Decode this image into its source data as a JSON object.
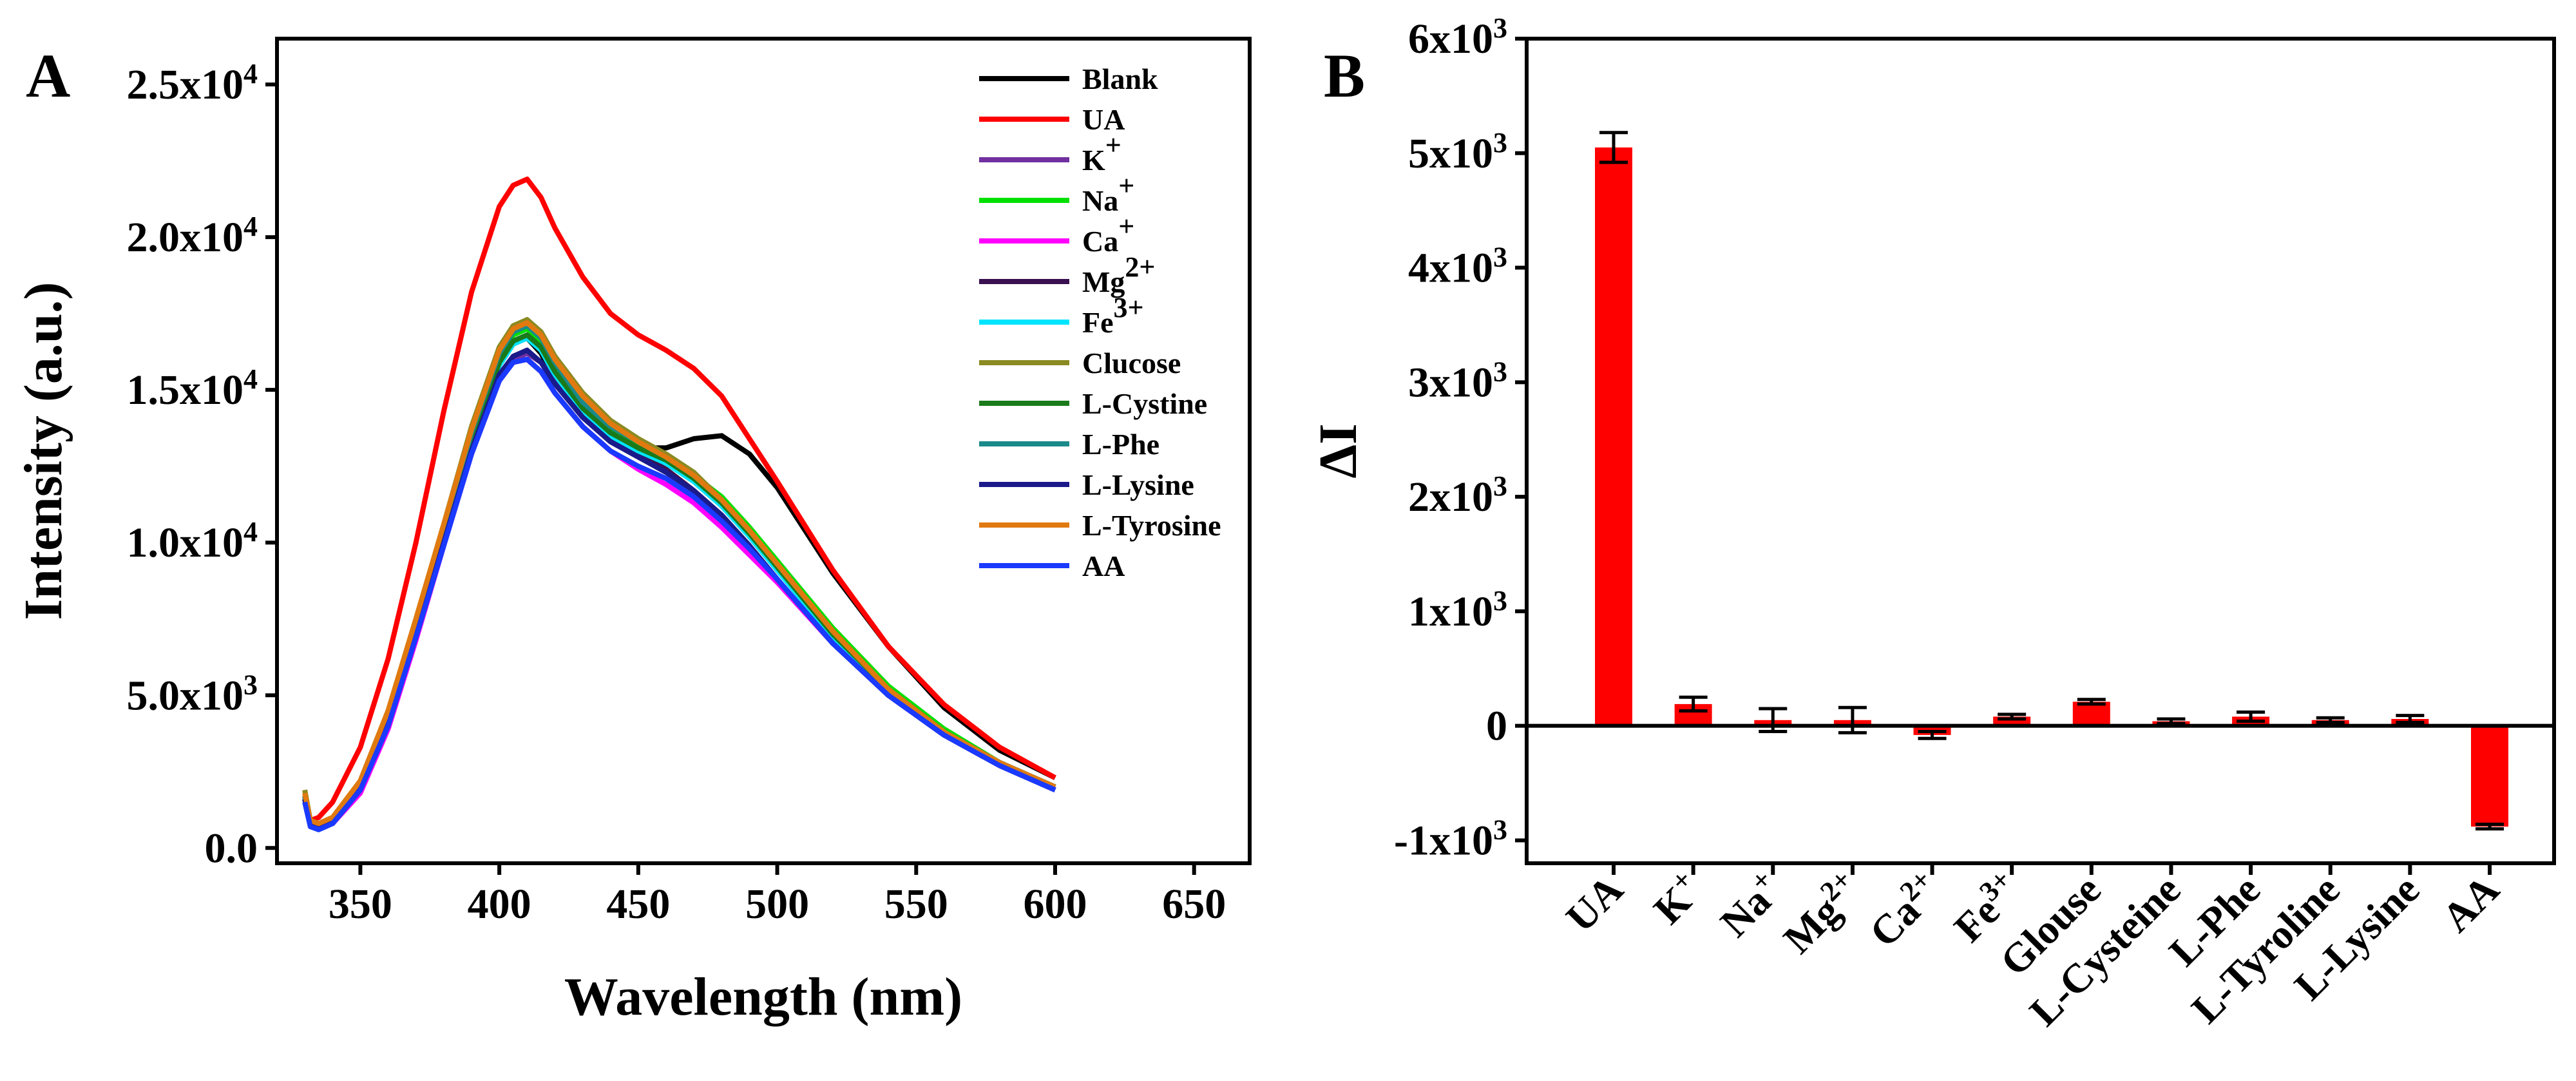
{
  "chart_data": [
    {
      "panel": "A",
      "type": "line",
      "title": "",
      "xlabel": "Wavelength (nm)",
      "ylabel": "Intensity (a.u.)",
      "xlim": [
        320,
        670
      ],
      "ylim": [
        -500,
        26500
      ],
      "xticks": [
        350,
        400,
        450,
        500,
        550,
        600,
        650
      ],
      "yticks": [
        {
          "value": 0,
          "mant": "0.0",
          "exp": ""
        },
        {
          "value": 5000,
          "mant": "5.0x10",
          "exp": "3"
        },
        {
          "value": 10000,
          "mant": "1.0x10",
          "exp": "4"
        },
        {
          "value": 15000,
          "mant": "1.5x10",
          "exp": "4"
        },
        {
          "value": 20000,
          "mant": "2.0x10",
          "exp": "4"
        },
        {
          "value": 25000,
          "mant": "2.5x10",
          "exp": "4"
        }
      ],
      "x": [
        330,
        332,
        335,
        340,
        350,
        360,
        370,
        380,
        390,
        400,
        405,
        410,
        415,
        420,
        430,
        440,
        450,
        460,
        470,
        480,
        490,
        500,
        520,
        540,
        560,
        580,
        600
      ],
      "series": [
        {
          "name": "Blank",
          "base": "Blank",
          "sup": "",
          "color": "#000000",
          "values": [
            1700,
            800,
            700,
            900,
            2100,
            4300,
            7200,
            10300,
            13400,
            15900,
            16600,
            16700,
            16200,
            15300,
            14200,
            13500,
            13100,
            13100,
            13400,
            13500,
            12900,
            11800,
            9000,
            6600,
            4600,
            3200,
            2300
          ]
        },
        {
          "name": "UA",
          "base": "UA",
          "sup": "",
          "color": "#ff0000",
          "values": [
            1700,
            900,
            1000,
            1500,
            3300,
            6200,
            10000,
            14300,
            18200,
            21000,
            21700,
            21900,
            21300,
            20300,
            18700,
            17500,
            16800,
            16300,
            15700,
            14800,
            13400,
            12000,
            9100,
            6600,
            4700,
            3300,
            2300
          ]
        },
        {
          "name": "K+",
          "base": "K",
          "sup": "+",
          "color": "#7030a0",
          "values": [
            1600,
            800,
            700,
            900,
            2000,
            4200,
            7100,
            10100,
            13000,
            15400,
            16000,
            16200,
            15900,
            15300,
            14300,
            13700,
            13300,
            12700,
            12000,
            11200,
            10200,
            9100,
            7000,
            5200,
            3800,
            2800,
            2000
          ]
        },
        {
          "name": "Na+",
          "base": "Na",
          "sup": "+",
          "color": "#00e000",
          "values": [
            1600,
            800,
            700,
            900,
            2000,
            4200,
            7200,
            10300,
            13500,
            16100,
            16800,
            17000,
            16600,
            15700,
            14500,
            13700,
            13200,
            12800,
            12200,
            11500,
            10500,
            9400,
            7200,
            5300,
            3900,
            2800,
            2000
          ]
        },
        {
          "name": "Ca+",
          "base": "Ca",
          "sup": "+",
          "color": "#ff00ff",
          "values": [
            1600,
            800,
            700,
            800,
            1800,
            3900,
            6800,
            9900,
            12900,
            15300,
            15900,
            16000,
            15600,
            14900,
            13800,
            13000,
            12400,
            11900,
            11300,
            10500,
            9600,
            8700,
            6700,
            5000,
            3700,
            2700,
            1900
          ]
        },
        {
          "name": "Mg2+",
          "base": "Mg",
          "sup": "2+",
          "color": "#3a1050",
          "values": [
            1600,
            800,
            700,
            900,
            2000,
            4100,
            7000,
            10100,
            13200,
            15800,
            16500,
            16700,
            16300,
            15500,
            14300,
            13500,
            12900,
            12400,
            11700,
            10900,
            9900,
            8800,
            6700,
            5000,
            3700,
            2700,
            1900
          ]
        },
        {
          "name": "Fe3+",
          "base": "Fe",
          "sup": "3+",
          "color": "#00e5ff",
          "values": [
            1600,
            800,
            700,
            900,
            2000,
            4200,
            7100,
            10100,
            13200,
            15800,
            16500,
            16700,
            16300,
            15500,
            14300,
            13500,
            13000,
            12600,
            12000,
            11200,
            10200,
            9100,
            6900,
            5100,
            3800,
            2800,
            2000
          ]
        },
        {
          "name": "Clucose",
          "base": "Clucose",
          "sup": "",
          "color": "#8a8a22",
          "values": [
            1900,
            900,
            800,
            1000,
            2200,
            4500,
            7500,
            10600,
            13800,
            16400,
            17100,
            17300,
            16900,
            16100,
            14900,
            14000,
            13400,
            12900,
            12300,
            11400,
            10400,
            9300,
            7100,
            5200,
            3800,
            2800,
            2000
          ]
        },
        {
          "name": "L-Cystine",
          "base": "L-Cystine",
          "sup": "",
          "color": "#1a7a1a",
          "values": [
            1600,
            800,
            700,
            900,
            2000,
            4200,
            7100,
            10200,
            13300,
            15900,
            16600,
            16800,
            16400,
            15600,
            14400,
            13600,
            13100,
            12700,
            12100,
            11300,
            10300,
            9200,
            7000,
            5200,
            3800,
            2800,
            2000
          ]
        },
        {
          "name": "L-Phe",
          "base": "L-Phe",
          "sup": "",
          "color": "#1a8a8a",
          "values": [
            1700,
            800,
            700,
            900,
            2100,
            4300,
            7300,
            10400,
            13600,
            16200,
            16900,
            17100,
            16700,
            15900,
            14600,
            13800,
            13300,
            12800,
            12200,
            11400,
            10400,
            9300,
            7100,
            5200,
            3800,
            2800,
            2000
          ]
        },
        {
          "name": "L-Lysine",
          "base": "L-Lysine",
          "sup": "",
          "color": "#1a1a8a",
          "values": [
            1600,
            800,
            700,
            900,
            2000,
            4100,
            7000,
            10000,
            13000,
            15500,
            16100,
            16300,
            15900,
            15200,
            14100,
            13300,
            12800,
            12300,
            11700,
            10900,
            9900,
            8800,
            6700,
            5000,
            3700,
            2700,
            1900
          ]
        },
        {
          "name": "L-Tyrosine",
          "base": "L-Tyrosine",
          "sup": "",
          "color": "#e07a10",
          "values": [
            1800,
            900,
            800,
            1000,
            2200,
            4500,
            7500,
            10600,
            13700,
            16300,
            17000,
            17200,
            16800,
            16000,
            14800,
            13900,
            13300,
            12800,
            12200,
            11400,
            10400,
            9300,
            7100,
            5200,
            3800,
            2800,
            2000
          ]
        },
        {
          "name": "AA",
          "base": "AA",
          "sup": "",
          "color": "#1a3aff",
          "values": [
            1500,
            700,
            600,
            800,
            1900,
            4000,
            6900,
            9900,
            12900,
            15300,
            15900,
            16000,
            15600,
            14900,
            13800,
            13000,
            12500,
            12100,
            11500,
            10700,
            9800,
            8800,
            6700,
            5000,
            3700,
            2700,
            1900
          ]
        }
      ]
    },
    {
      "panel": "B",
      "type": "bar",
      "title": "",
      "xlabel": "",
      "ylabel": "ΔI",
      "ylim": [
        -1200,
        6000
      ],
      "color": "#ff0000",
      "yticks": [
        {
          "value": -1000,
          "mant": "-1x10",
          "exp": "3"
        },
        {
          "value": 0,
          "mant": "0",
          "exp": ""
        },
        {
          "value": 1000,
          "mant": "1x10",
          "exp": "3"
        },
        {
          "value": 2000,
          "mant": "2x10",
          "exp": "3"
        },
        {
          "value": 3000,
          "mant": "3x10",
          "exp": "3"
        },
        {
          "value": 4000,
          "mant": "4x10",
          "exp": "3"
        },
        {
          "value": 5000,
          "mant": "5x10",
          "exp": "3"
        },
        {
          "value": 6000,
          "mant": "6x10",
          "exp": "3"
        }
      ],
      "categories": [
        {
          "label": "UA",
          "base": "UA",
          "sup": ""
        },
        {
          "label": "K+",
          "base": "K",
          "sup": "+"
        },
        {
          "label": "Na+",
          "base": "Na",
          "sup": "+"
        },
        {
          "label": "Mg2+",
          "base": "Mg",
          "sup": "2+"
        },
        {
          "label": "Ca2+",
          "base": "Ca",
          "sup": "2+"
        },
        {
          "label": "Fe3+",
          "base": "Fe",
          "sup": "3+"
        },
        {
          "label": "Glouse",
          "base": "Glouse",
          "sup": ""
        },
        {
          "label": "L-Cysteine",
          "base": "L-Cysteine",
          "sup": ""
        },
        {
          "label": "L-Phe",
          "base": "L-Phe",
          "sup": ""
        },
        {
          "label": "L-Tyroline",
          "base": "L-Tyroline",
          "sup": ""
        },
        {
          "label": "L-Lysine",
          "base": "L-Lysine",
          "sup": ""
        },
        {
          "label": "AA",
          "base": "AA",
          "sup": ""
        }
      ],
      "values": [
        5050,
        190,
        50,
        50,
        -80,
        80,
        210,
        40,
        80,
        50,
        60,
        -880
      ],
      "errors": [
        130,
        60,
        100,
        110,
        30,
        20,
        20,
        20,
        40,
        20,
        30,
        20
      ]
    }
  ],
  "panel_labels": {
    "a": "A",
    "b": "B"
  }
}
